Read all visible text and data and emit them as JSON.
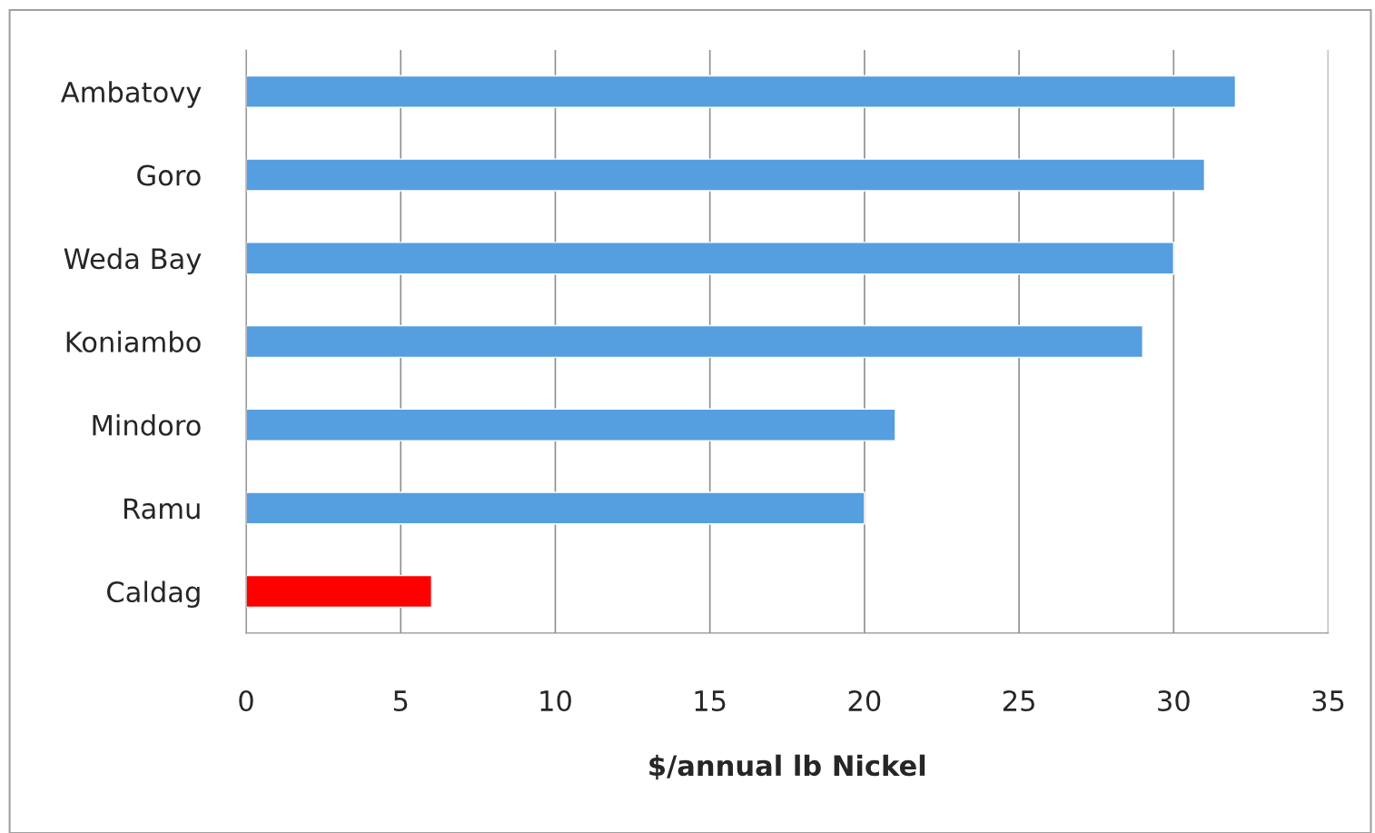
{
  "chart_data": {
    "type": "bar",
    "orientation": "horizontal",
    "xlabel": "$/annual lb Nickel",
    "categories": [
      "Ambatovy",
      "Goro",
      "Weda Bay",
      "Koniambo",
      "Mindoro",
      "Ramu",
      "Caldag"
    ],
    "values": [
      32,
      31,
      30,
      29,
      21,
      20,
      6
    ],
    "colors": [
      "#559ee0",
      "#559ee0",
      "#559ee0",
      "#559ee0",
      "#559ee0",
      "#559ee0",
      "#ff0000"
    ],
    "xlim": [
      0,
      35
    ],
    "xticks": [
      0,
      5,
      10,
      15,
      20,
      25,
      30,
      35
    ],
    "grid": "x",
    "legend": false
  }
}
